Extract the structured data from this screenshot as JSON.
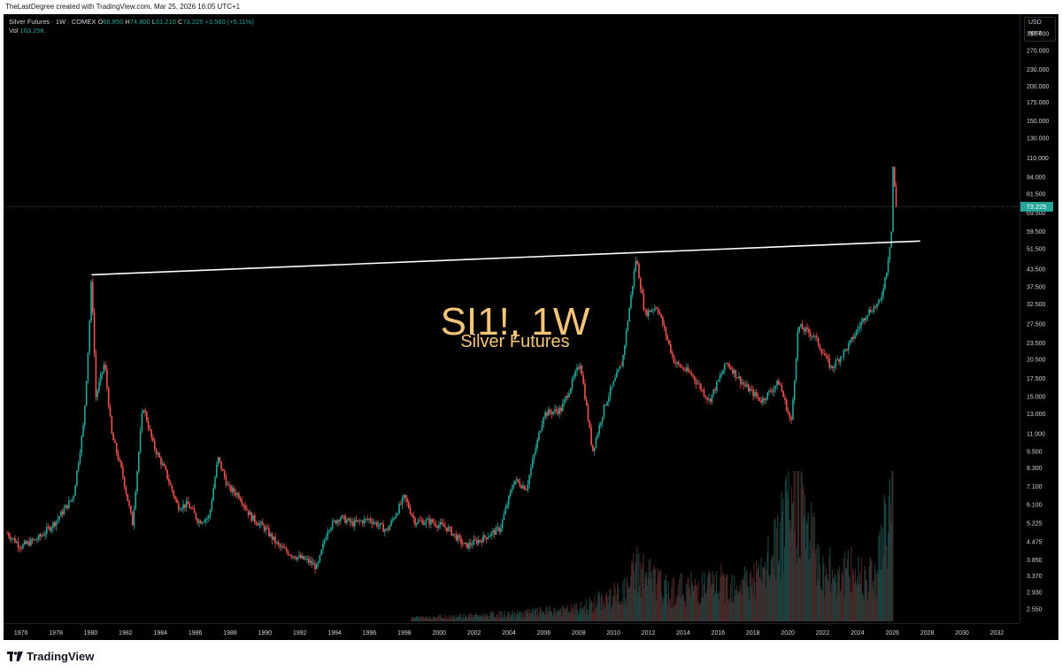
{
  "caption": "TheLastDegree created with TradingView.com, Mar 25, 2026 16:05 UTC+1",
  "legend": {
    "symbol": "Silver Futures · 1W · COMEX",
    "o_label": "O",
    "o": "66.850",
    "h_label": "H",
    "h": "74.800",
    "l_label": "L",
    "l": "61.210",
    "c_label": "C",
    "c": "73.225",
    "change": "+3.560 (+5.11%)",
    "vol_label": "Vol",
    "vol": "163.25K"
  },
  "currency": {
    "unit": "USD",
    "mode": "apoz"
  },
  "watermark": {
    "title": "SI1!, 1W",
    "subtitle": "Silver Futures"
  },
  "last_price": "73.225",
  "brand": "TradingView",
  "colors": {
    "up": "#26a69a",
    "down": "#ef5350",
    "watermark": "#f5c57a",
    "trendline": "#ffffff"
  },
  "chart_data": {
    "type": "candlestick",
    "y_scale": "log",
    "ylim": [
      2.3,
      360
    ],
    "xlim": [
      1975.0,
      2033.3
    ],
    "y_ticks": [
      "310.000",
      "270.000",
      "230.000",
      "200.000",
      "175.000",
      "150.000",
      "130.000",
      "110.000",
      "94.000",
      "81.500",
      "69.500",
      "59.500",
      "51.500",
      "43.500",
      "37.500",
      "32.500",
      "27.500",
      "23.500",
      "20.500",
      "17.500",
      "15.000",
      "13.000",
      "11.000",
      "9.500",
      "8.300",
      "7.100",
      "6.100",
      "5.225",
      "4.475",
      "3.850",
      "3.370",
      "2.930",
      "2.550"
    ],
    "x_ticks": [
      "1976",
      "1978",
      "1980",
      "1982",
      "1984",
      "1986",
      "1988",
      "1990",
      "1992",
      "1994",
      "1996",
      "1998",
      "2000",
      "2002",
      "2004",
      "2006",
      "2008",
      "2010",
      "2012",
      "2014",
      "2016",
      "2018",
      "2020",
      "2022",
      "2024",
      "2026",
      "2028",
      "2030",
      "2032"
    ],
    "price_path": [
      [
        1975.2,
        4.8
      ],
      [
        1976.0,
        4.3
      ],
      [
        1977.0,
        4.6
      ],
      [
        1978.0,
        5.3
      ],
      [
        1979.0,
        6.5
      ],
      [
        1979.6,
        12
      ],
      [
        1979.9,
        25
      ],
      [
        1980.05,
        41
      ],
      [
        1980.3,
        15
      ],
      [
        1980.8,
        20
      ],
      [
        1981.2,
        11
      ],
      [
        1981.8,
        8
      ],
      [
        1982.4,
        5.2
      ],
      [
        1983.0,
        14
      ],
      [
        1983.6,
        10
      ],
      [
        1984.3,
        8
      ],
      [
        1985.0,
        6
      ],
      [
        1985.6,
        6.1
      ],
      [
        1986.2,
        5.3
      ],
      [
        1986.8,
        5.5
      ],
      [
        1987.3,
        9.0
      ],
      [
        1987.9,
        7.0
      ],
      [
        1988.5,
        6.6
      ],
      [
        1989.2,
        5.5
      ],
      [
        1990.0,
        5.0
      ],
      [
        1990.8,
        4.3
      ],
      [
        1991.6,
        4.0
      ],
      [
        1992.5,
        3.8
      ],
      [
        1993.0,
        3.6
      ],
      [
        1993.6,
        5.0
      ],
      [
        1994.3,
        5.5
      ],
      [
        1995.0,
        5.2
      ],
      [
        1996.0,
        5.4
      ],
      [
        1997.0,
        4.9
      ],
      [
        1998.0,
        6.5
      ],
      [
        1998.6,
        5.3
      ],
      [
        1999.5,
        5.3
      ],
      [
        2000.5,
        5.0
      ],
      [
        2001.5,
        4.3
      ],
      [
        2002.5,
        4.6
      ],
      [
        2003.5,
        5.0
      ],
      [
        2004.3,
        7.5
      ],
      [
        2005.0,
        7.0
      ],
      [
        2006.0,
        13
      ],
      [
        2007.0,
        13.5
      ],
      [
        2008.1,
        20
      ],
      [
        2008.8,
        9.5
      ],
      [
        2009.5,
        14
      ],
      [
        2010.5,
        20
      ],
      [
        2011.3,
        48
      ],
      [
        2011.8,
        30
      ],
      [
        2012.5,
        32
      ],
      [
        2013.5,
        20
      ],
      [
        2014.5,
        18
      ],
      [
        2015.5,
        14.5
      ],
      [
        2016.5,
        20
      ],
      [
        2017.5,
        16.5
      ],
      [
        2018.5,
        14.5
      ],
      [
        2019.5,
        17
      ],
      [
        2020.2,
        12
      ],
      [
        2020.6,
        27
      ],
      [
        2021.5,
        25
      ],
      [
        2022.5,
        19
      ],
      [
        2023.5,
        23
      ],
      [
        2024.5,
        30
      ],
      [
        2025.3,
        33
      ],
      [
        2025.7,
        44
      ],
      [
        2025.95,
        60
      ],
      [
        2026.05,
        110
      ],
      [
        2026.15,
        80
      ],
      [
        2026.22,
        73.225
      ]
    ],
    "volume_bands": [
      [
        1998.4,
        0.03
      ],
      [
        2004,
        0.06
      ],
      [
        2008,
        0.1
      ],
      [
        2010.8,
        0.25
      ],
      [
        2011.3,
        0.45
      ],
      [
        2013,
        0.25
      ],
      [
        2016,
        0.3
      ],
      [
        2018.5,
        0.35
      ],
      [
        2020.6,
        1.0
      ],
      [
        2022,
        0.4
      ],
      [
        2025,
        0.4
      ],
      [
        2026.05,
        1.0
      ]
    ],
    "trendline": [
      [
        1980.05,
        41.5
      ],
      [
        2027.6,
        55
      ]
    ]
  }
}
